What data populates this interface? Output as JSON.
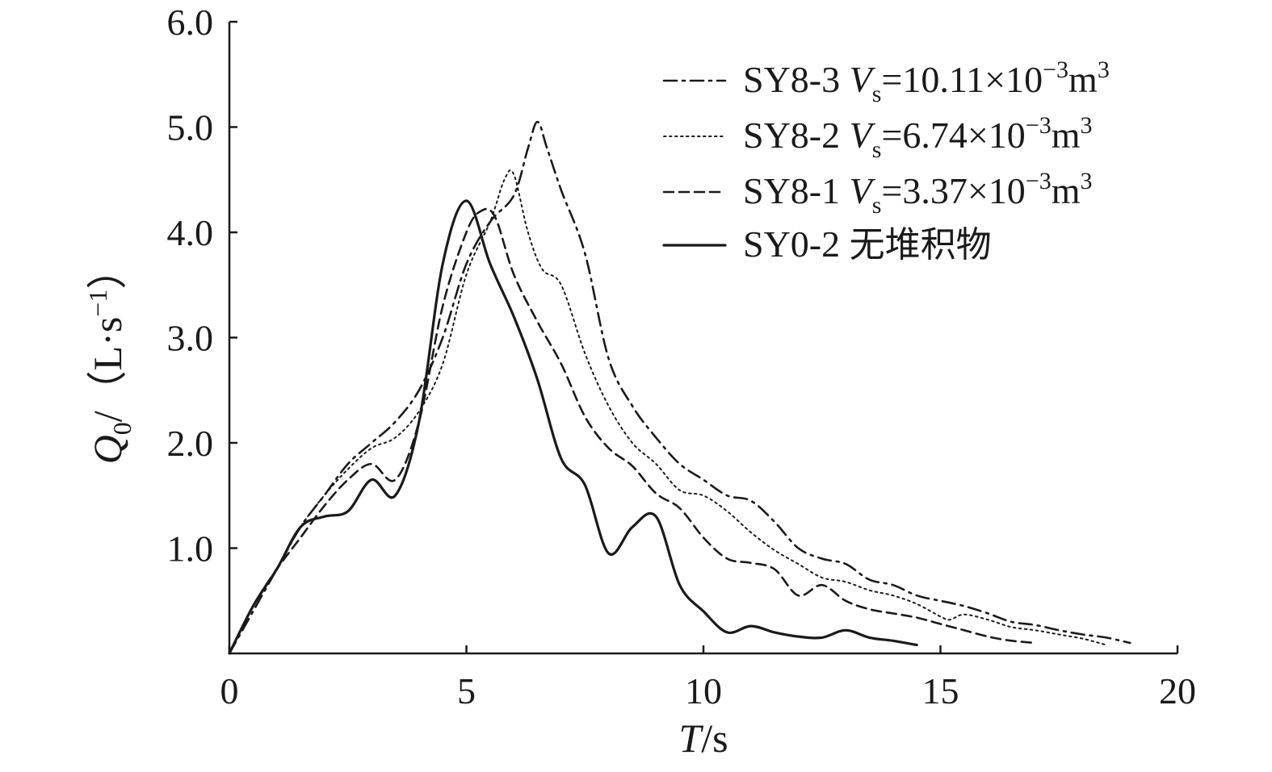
{
  "chart_data": {
    "type": "line",
    "xlabel": {
      "var": "T",
      "unit": "/s"
    },
    "ylabel": {
      "var": "Q",
      "sub": "0",
      "unit_open": "/（L·s",
      "unit_sup": "−1",
      "unit_close": "）"
    },
    "xlim": [
      0,
      20
    ],
    "ylim": [
      0,
      6
    ],
    "xticks": [
      0,
      5,
      10,
      15,
      20
    ],
    "yticks": [
      1,
      2,
      3,
      4,
      5,
      6
    ],
    "xtick_labels": [
      "0",
      "5",
      "10",
      "15",
      "20"
    ],
    "ytick_labels": [
      "1.0",
      "2.0",
      "3.0",
      "4.0",
      "5.0",
      "6.0"
    ],
    "grid": false,
    "legend_position": "top-right",
    "series": [
      {
        "name": "SY8-3",
        "volume": {
          "var": "V",
          "sub": "s",
          "value": "=10.11×10",
          "exp": "−3",
          "unit": "m",
          "unit_exp": "3"
        },
        "style": "dashdot",
        "x": [
          0,
          0.5,
          1,
          1.5,
          2,
          2.5,
          3,
          3.5,
          4,
          4.5,
          5,
          5.5,
          6,
          6.3,
          6.5,
          6.7,
          7,
          7.5,
          8,
          8.5,
          9,
          9.5,
          10,
          10.5,
          11,
          11.5,
          12,
          12.5,
          13,
          13.5,
          14,
          14.5,
          15,
          15.5,
          16,
          16.5,
          17,
          17.5,
          18,
          18.5,
          19
        ],
        "y": [
          0,
          0.4,
          0.8,
          1.2,
          1.5,
          1.8,
          2.0,
          2.2,
          2.5,
          3.0,
          3.7,
          4.1,
          4.35,
          4.8,
          5.05,
          4.8,
          4.4,
          3.8,
          2.8,
          2.35,
          2.05,
          1.8,
          1.65,
          1.5,
          1.45,
          1.25,
          1.0,
          0.9,
          0.85,
          0.7,
          0.65,
          0.55,
          0.5,
          0.45,
          0.38,
          0.3,
          0.27,
          0.22,
          0.18,
          0.15,
          0.1
        ]
      },
      {
        "name": "SY8-2",
        "volume": {
          "var": "V",
          "sub": "s",
          "value": "=6.74×10",
          "exp": "−3",
          "unit": "m",
          "unit_exp": "3"
        },
        "style": "dotted",
        "x": [
          0,
          0.5,
          1,
          1.5,
          2,
          2.5,
          3,
          3.5,
          4,
          4.5,
          5,
          5.5,
          5.8,
          6,
          6.3,
          6.6,
          7,
          7.5,
          8,
          8.5,
          9,
          9.5,
          10,
          10.5,
          11,
          11.5,
          12,
          12.5,
          13,
          13.5,
          14,
          14.5,
          15,
          15.2,
          15.5,
          16,
          16.5,
          17,
          17.5,
          18,
          18.5
        ],
        "y": [
          0,
          0.45,
          0.8,
          1.2,
          1.5,
          1.75,
          1.95,
          2.05,
          2.3,
          2.75,
          3.6,
          4.1,
          4.5,
          4.55,
          4.0,
          3.65,
          3.5,
          2.85,
          2.35,
          2.0,
          1.8,
          1.55,
          1.5,
          1.35,
          1.15,
          0.98,
          0.85,
          0.72,
          0.68,
          0.6,
          0.55,
          0.47,
          0.35,
          0.32,
          0.37,
          0.32,
          0.25,
          0.22,
          0.18,
          0.14,
          0.08
        ]
      },
      {
        "name": "SY8-1",
        "volume": {
          "var": "V",
          "sub": "s",
          "value": "=3.37×10",
          "exp": "−3",
          "unit": "m",
          "unit_exp": "3"
        },
        "style": "dashed",
        "x": [
          0,
          0.5,
          1,
          1.5,
          2,
          2.5,
          3,
          3.5,
          4,
          4.5,
          5,
          5.3,
          5.6,
          6,
          6.5,
          7,
          7.5,
          8,
          8.5,
          9,
          9.5,
          10,
          10.5,
          11,
          11.5,
          12,
          12.5,
          13,
          13.5,
          14,
          14.5,
          15,
          15.5,
          16,
          16.5,
          17
        ],
        "y": [
          0,
          0.45,
          0.8,
          1.1,
          1.4,
          1.65,
          1.8,
          1.65,
          2.2,
          3.3,
          4.0,
          4.2,
          4.15,
          3.6,
          3.15,
          2.75,
          2.25,
          1.95,
          1.78,
          1.52,
          1.38,
          1.1,
          0.9,
          0.86,
          0.8,
          0.55,
          0.65,
          0.5,
          0.42,
          0.38,
          0.34,
          0.28,
          0.22,
          0.16,
          0.12,
          0.1
        ]
      },
      {
        "name": "SY0-2",
        "annotation": "无堆积物",
        "style": "solid",
        "x": [
          0,
          0.5,
          1,
          1.5,
          2,
          2.5,
          3,
          3.5,
          4,
          4.5,
          5,
          5.5,
          6,
          6.5,
          7,
          7.5,
          8,
          8.5,
          9,
          9.5,
          10,
          10.5,
          11,
          11.5,
          12,
          12.5,
          13,
          13.5,
          14,
          14.5
        ],
        "y": [
          0,
          0.45,
          0.8,
          1.2,
          1.3,
          1.35,
          1.65,
          1.5,
          2.2,
          3.7,
          4.3,
          3.7,
          3.2,
          2.6,
          1.85,
          1.6,
          0.95,
          1.2,
          1.3,
          0.65,
          0.4,
          0.2,
          0.26,
          0.2,
          0.16,
          0.15,
          0.22,
          0.15,
          0.12,
          0.08
        ]
      }
    ]
  }
}
